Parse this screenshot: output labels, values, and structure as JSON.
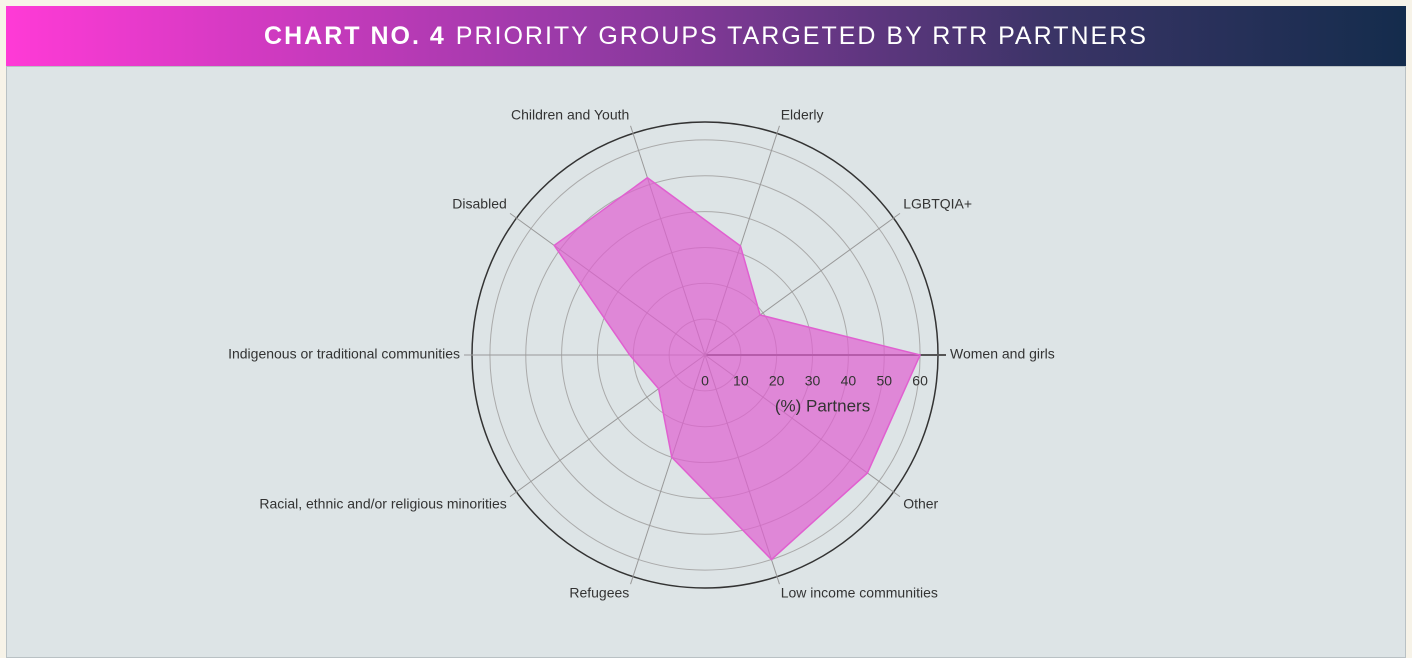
{
  "chart_data": {
    "type": "radar",
    "chart_number": "CHART NO. 4",
    "title": "PRIORITY GROUPS TARGETED BY RTR PARTNERS",
    "axis_label": "(%) Partners",
    "categories": [
      "Women and girls",
      "LGBTQIA+",
      "Elderly",
      "Children and Youth",
      "Disabled",
      "Indigenous or traditional communities",
      "Racial, ethnic and/or religious minorities",
      "Refugees",
      "Low income communities",
      "Other"
    ],
    "values": [
      60,
      19,
      32,
      52,
      52,
      21,
      16,
      30,
      60,
      56
    ],
    "color": "#e060d0",
    "ylim": [
      0,
      65
    ],
    "yticks": [
      0,
      10,
      20,
      30,
      40,
      50,
      60
    ],
    "grid": true
  }
}
